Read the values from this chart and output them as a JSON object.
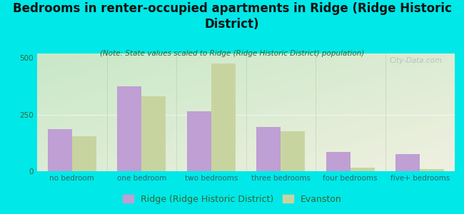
{
  "title": "Bedrooms in renter-occupied apartments in Ridge (Ridge Historic\nDistrict)",
  "subtitle": "(Note: State values scaled to Ridge (Ridge Historic District) population)",
  "categories": [
    "no bedroom",
    "one bedroom",
    "two bedrooms",
    "three bedrooms",
    "four bedrooms",
    "five+ bedrooms"
  ],
  "ridge_values": [
    185,
    375,
    265,
    195,
    85,
    75
  ],
  "evanston_values": [
    155,
    330,
    475,
    175,
    15,
    10
  ],
  "ridge_color": "#bf9fd4",
  "evanston_color": "#c8d4a0",
  "background_outer": "#00e8e8",
  "ylim": [
    0,
    520
  ],
  "yticks": [
    0,
    250,
    500
  ],
  "legend_ridge": "Ridge (Ridge Historic District)",
  "legend_evanston": "Evanston",
  "watermark": "City-Data.com",
  "title_fontsize": 12,
  "subtitle_fontsize": 7.5,
  "tick_fontsize": 7.5,
  "legend_fontsize": 9,
  "grad_top_left": "#c8e8c8",
  "grad_bottom_right": "#f0f0e0"
}
